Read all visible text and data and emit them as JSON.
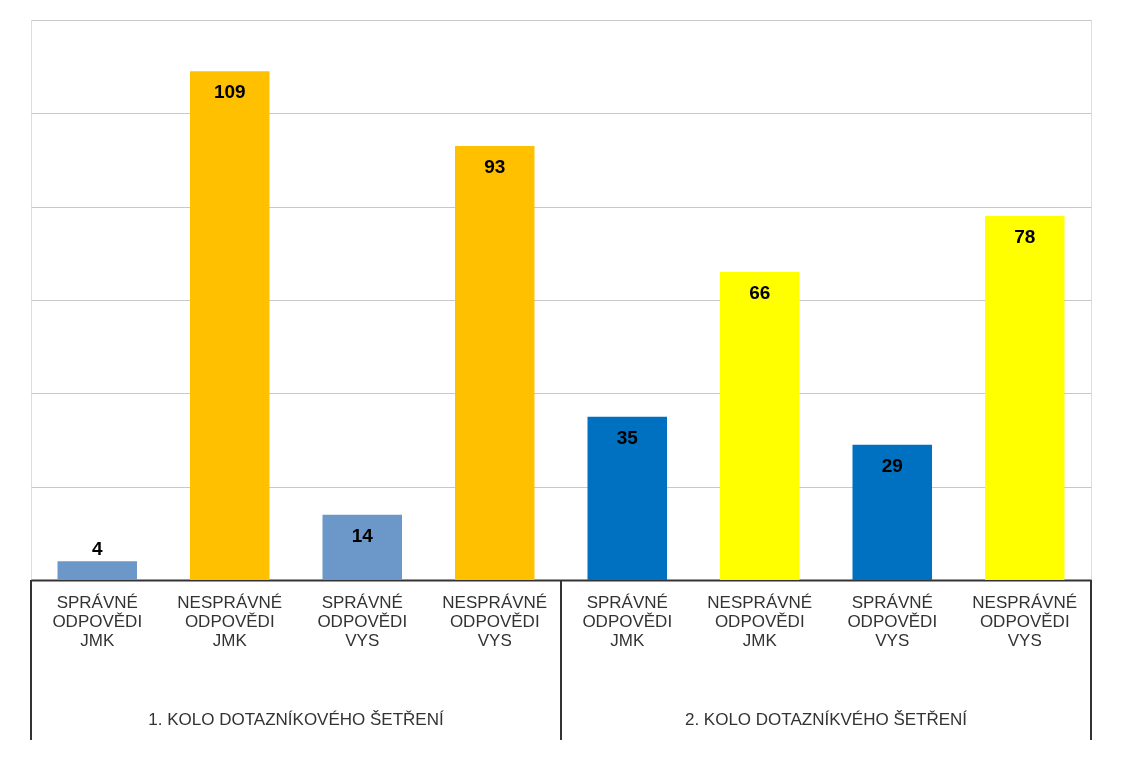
{
  "chart_data": {
    "type": "bar",
    "categories": [
      "SPRÁVNÉ ODPOVĚDI JMK",
      "NESPRÁVNÉ ODPOVĚDI JMK",
      "SPRÁVNÉ ODPOVĚDI VYS",
      "NESPRÁVNÉ ODPOVĚDI VYS",
      "SPRÁVNÉ ODPOVĚDI JMK",
      "NESPRÁVNÉ ODPOVĚDI JMK",
      "SPRÁVNÉ ODPOVĚDI VYS",
      "NESPRÁVNÉ ODPOVĚDI VYS"
    ],
    "values": [
      4,
      109,
      14,
      93,
      35,
      66,
      29,
      78
    ],
    "colors": [
      "#6b97c9",
      "#ffc000",
      "#6b97c9",
      "#ffc000",
      "#0070c0",
      "#ffff00",
      "#0070c0",
      "#ffff00"
    ],
    "data_labels": true,
    "ylim": [
      0,
      120
    ],
    "yticks": [
      {
        "value": 0,
        "label": null
      },
      {
        "value": 20,
        "label": null
      },
      {
        "value": 40,
        "label": null
      },
      {
        "value": 60,
        "label": null
      },
      {
        "value": 80,
        "label": null
      },
      {
        "value": 100,
        "label": null
      },
      {
        "value": 120,
        "label": null
      }
    ],
    "grid": "y",
    "tick_labels": "x",
    "annotations": [
      "1. KOLO DOTAZNÍKOVÉHO ŠETŘENÍ",
      "2. KOLO DOTAZNÍKVÉHO ŠETŘENÍ"
    ]
  }
}
